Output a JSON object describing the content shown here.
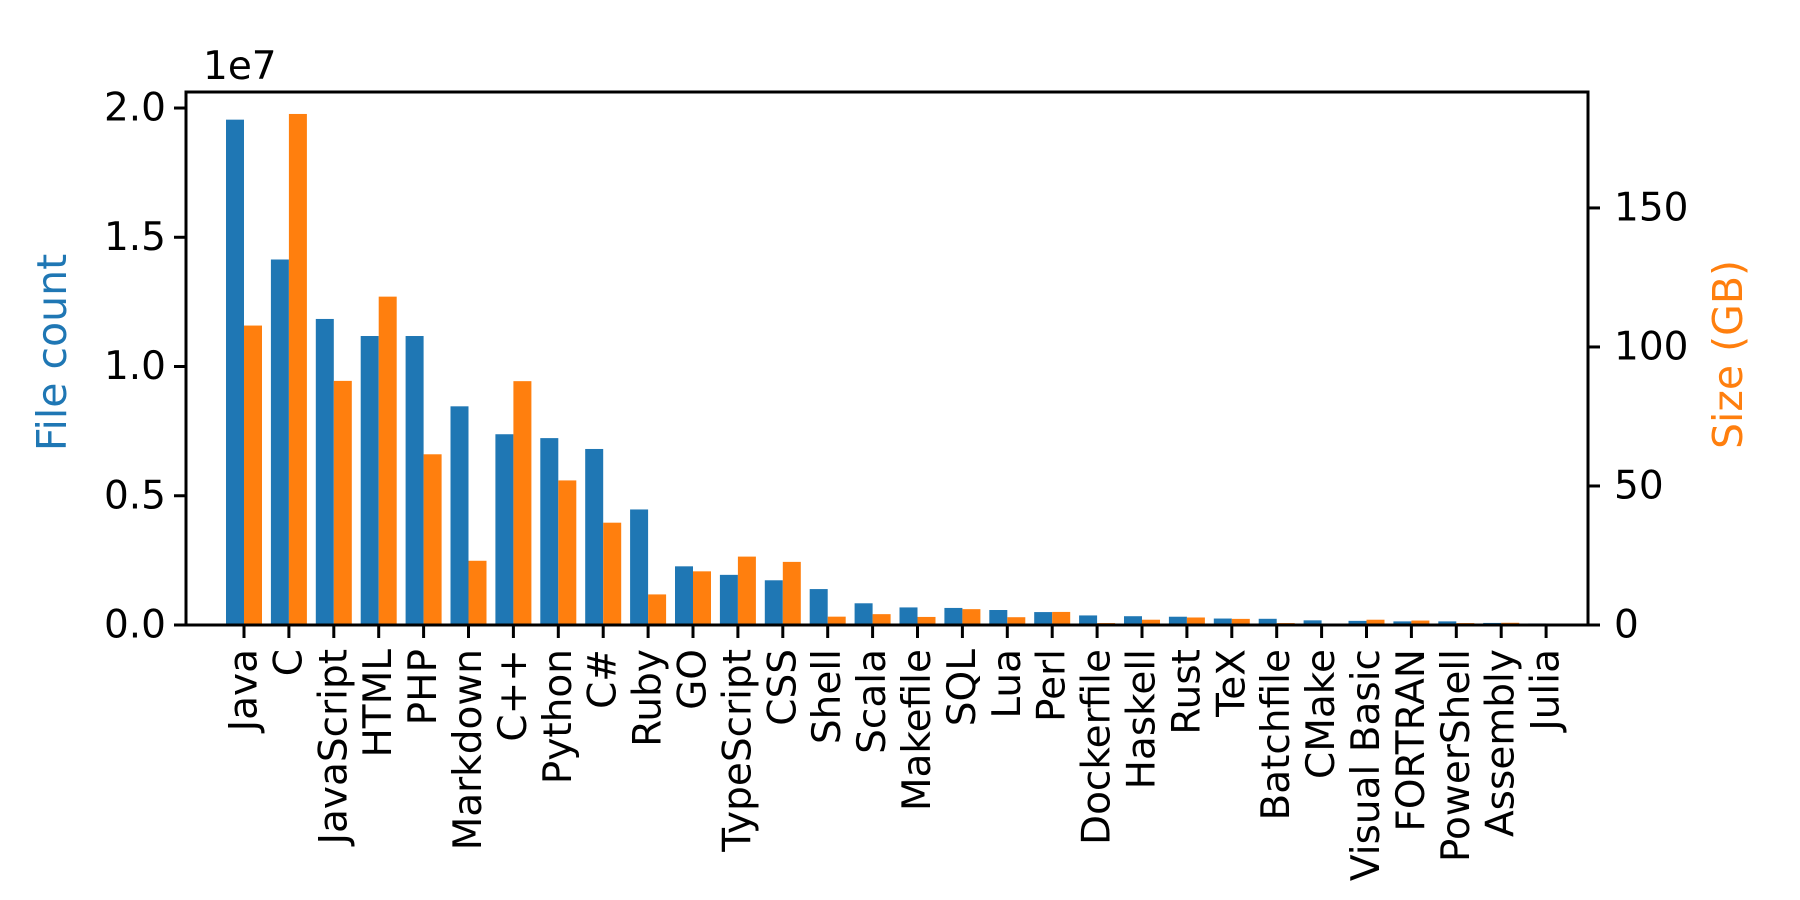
{
  "figure": {
    "background": "#ffffff",
    "frame_color": "#000000",
    "text_color": "#000000"
  },
  "chart_data": {
    "type": "bar",
    "title": "",
    "categories": [
      "Java",
      "C",
      "JavaScript",
      "HTML",
      "PHP",
      "Markdown",
      "C++",
      "Python",
      "C#",
      "Ruby",
      "GO",
      "TypeScript",
      "CSS",
      "Shell",
      "Scala",
      "Makefile",
      "SQL",
      "Lua",
      "Perl",
      "Dockerfile",
      "Haskell",
      "Rust",
      "TeX",
      "Batchfile",
      "CMake",
      "Visual Basic",
      "FORTRAN",
      "PowerShell",
      "Assembly",
      "Julia"
    ],
    "series": [
      {
        "name": "File count",
        "axis": "left",
        "color": "#1f77b4",
        "unit": "files (millions)",
        "values_millions": [
          19.55,
          14.14,
          11.84,
          11.18,
          11.18,
          8.46,
          7.38,
          7.23,
          6.81,
          4.47,
          2.27,
          1.94,
          1.73,
          1.39,
          0.84,
          0.68,
          0.66,
          0.58,
          0.5,
          0.37,
          0.34,
          0.32,
          0.25,
          0.24,
          0.18,
          0.16,
          0.14,
          0.14,
          0.08,
          0.06
        ]
      },
      {
        "name": "Size (GB)",
        "axis": "right",
        "color": "#ff7f0e",
        "unit": "GB",
        "values_gb": [
          107.7,
          183.8,
          87.8,
          118.1,
          61.4,
          23.1,
          87.7,
          52.0,
          36.8,
          11.0,
          19.3,
          24.6,
          22.7,
          3.0,
          3.9,
          2.9,
          5.7,
          2.8,
          4.7,
          0.7,
          1.9,
          2.7,
          2.2,
          0.7,
          0.5,
          1.9,
          1.6,
          0.7,
          0.8,
          0.3
        ]
      }
    ],
    "left_axis": {
      "label": "File count",
      "label_color": "#1f77b4",
      "offset_label": "1e7",
      "tick_labels": [
        "0.0",
        "0.5",
        "1.0",
        "1.5",
        "2.0"
      ],
      "tick_values_e7": [
        0,
        0.5,
        1.0,
        1.5,
        2.0
      ],
      "max_e7": 2.062
    },
    "right_axis": {
      "label": "Size (GB)",
      "label_color": "#ff7f0e",
      "tick_labels": [
        "0",
        "50",
        "100",
        "150"
      ],
      "tick_values_gb": [
        0,
        50,
        100,
        150
      ],
      "max_gb": 191.7
    },
    "x_axis": {
      "label": "",
      "tick_label_rotation_deg": 90
    },
    "legend": "none",
    "grid": false
  }
}
